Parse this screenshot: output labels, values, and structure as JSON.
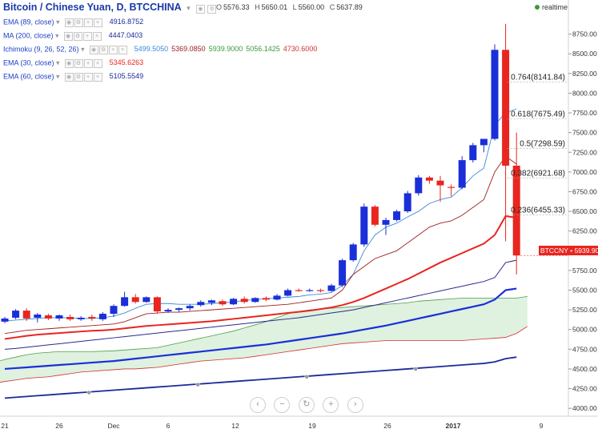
{
  "header": {
    "title": "Bitcoin / Chinese Yuan, D, BTCCHINA",
    "ohlc": {
      "o_label": "O",
      "o": "5576.33",
      "h_label": "H",
      "h": "5650.01",
      "l_label": "L",
      "l": "5560.00",
      "c_label": "C",
      "c": "5637.89"
    },
    "realtime": "realtime"
  },
  "indicators": [
    {
      "label": "EMA (89, close)",
      "values": [
        "4916.8752"
      ],
      "colors": [
        "#1a2a9a"
      ]
    },
    {
      "label": "MA (200, close)",
      "values": [
        "4447.0403"
      ],
      "colors": [
        "#1a2a9a"
      ]
    },
    {
      "label": "Ichimoku (9, 26, 52, 26)",
      "values": [
        "5499.5050",
        "5369.0850",
        "5939.9000",
        "5056.1425",
        "4730.6000"
      ],
      "colors": [
        "#3a8ad8",
        "#a02020",
        "#3a9a3a",
        "#3a9a3a",
        "#d03030"
      ]
    },
    {
      "label": "EMA (30, close)",
      "values": [
        "5345.6263"
      ],
      "colors": [
        "#e8251f"
      ]
    },
    {
      "label": "EMA (60, close)",
      "values": [
        "5105.5549"
      ],
      "colors": [
        "#1a2a9a"
      ]
    }
  ],
  "last_price": {
    "symbol": "BTCCNY",
    "value": "5939.90"
  },
  "nav_icons": [
    "chevron-left-icon",
    "minus-icon",
    "reset-icon",
    "plus-icon",
    "chevron-right-icon"
  ],
  "colors": {
    "up": "#1a2fd8",
    "down": "#e8251f",
    "ema30": "#e8251f",
    "ma200": "#1a2a9a",
    "ema60": "#1a2fd8",
    "ema89": "#2a2a8a",
    "tenkan": "#3a8ad8",
    "kijun": "#a02020",
    "cloud": "#d9efd9"
  },
  "chart_data": {
    "type": "candlestick",
    "title": "Bitcoin / Chinese Yuan, D, BTCCHINA",
    "ylim": [
      3900,
      9000
    ],
    "y_ticks": [
      4000,
      4250,
      4500,
      4750,
      5000,
      5250,
      5500,
      5750,
      6000,
      6250,
      6500,
      6750,
      7000,
      7250,
      7500,
      7750,
      8000,
      8250,
      8500,
      8750
    ],
    "x_ticks": [
      "21",
      "26",
      "Dec",
      "6",
      "12",
      "19",
      "26",
      "2017",
      "9"
    ],
    "fib_levels": [
      {
        "label": "0.764(8141.84)",
        "value": 8141.84
      },
      {
        "label": "0.618(7675.49)",
        "value": 7675.49
      },
      {
        "label": "0.5(7298.59)",
        "value": 7298.59
      },
      {
        "label": "0.382(6921.68)",
        "value": 6921.68
      },
      {
        "label": "0.236(6455.33)",
        "value": 6455.33
      }
    ],
    "candles": [
      {
        "o": 5100,
        "h": 5160,
        "l": 5080,
        "c": 5140
      },
      {
        "o": 5150,
        "h": 5260,
        "l": 5130,
        "c": 5240
      },
      {
        "o": 5240,
        "h": 5270,
        "l": 5110,
        "c": 5140
      },
      {
        "o": 5150,
        "h": 5210,
        "l": 5090,
        "c": 5190
      },
      {
        "o": 5180,
        "h": 5200,
        "l": 5120,
        "c": 5140
      },
      {
        "o": 5140,
        "h": 5190,
        "l": 5110,
        "c": 5180
      },
      {
        "o": 5160,
        "h": 5190,
        "l": 5110,
        "c": 5130
      },
      {
        "o": 5130,
        "h": 5170,
        "l": 5110,
        "c": 5150
      },
      {
        "o": 5160,
        "h": 5190,
        "l": 5110,
        "c": 5140
      },
      {
        "o": 5130,
        "h": 5220,
        "l": 5110,
        "c": 5200
      },
      {
        "o": 5200,
        "h": 5320,
        "l": 5160,
        "c": 5300
      },
      {
        "o": 5300,
        "h": 5480,
        "l": 5290,
        "c": 5410
      },
      {
        "o": 5410,
        "h": 5450,
        "l": 5330,
        "c": 5350
      },
      {
        "o": 5350,
        "h": 5420,
        "l": 5340,
        "c": 5410
      },
      {
        "o": 5410,
        "h": 5420,
        "l": 5200,
        "c": 5230
      },
      {
        "o": 5230,
        "h": 5270,
        "l": 5210,
        "c": 5250
      },
      {
        "o": 5250,
        "h": 5280,
        "l": 5220,
        "c": 5270
      },
      {
        "o": 5270,
        "h": 5320,
        "l": 5240,
        "c": 5300
      },
      {
        "o": 5310,
        "h": 5370,
        "l": 5290,
        "c": 5350
      },
      {
        "o": 5340,
        "h": 5380,
        "l": 5310,
        "c": 5370
      },
      {
        "o": 5360,
        "h": 5380,
        "l": 5300,
        "c": 5320
      },
      {
        "o": 5320,
        "h": 5400,
        "l": 5310,
        "c": 5390
      },
      {
        "o": 5390,
        "h": 5420,
        "l": 5330,
        "c": 5350
      },
      {
        "o": 5350,
        "h": 5410,
        "l": 5340,
        "c": 5400
      },
      {
        "o": 5400,
        "h": 5420,
        "l": 5360,
        "c": 5380
      },
      {
        "o": 5380,
        "h": 5450,
        "l": 5370,
        "c": 5430
      },
      {
        "o": 5430,
        "h": 5520,
        "l": 5420,
        "c": 5500
      },
      {
        "o": 5500,
        "h": 5520,
        "l": 5480,
        "c": 5490
      },
      {
        "o": 5490,
        "h": 5520,
        "l": 5480,
        "c": 5500
      },
      {
        "o": 5500,
        "h": 5520,
        "l": 5470,
        "c": 5490
      },
      {
        "o": 5490,
        "h": 5580,
        "l": 5480,
        "c": 5560
      },
      {
        "o": 5560,
        "h": 5900,
        "l": 5540,
        "c": 5880
      },
      {
        "o": 5880,
        "h": 6100,
        "l": 5860,
        "c": 6080
      },
      {
        "o": 6080,
        "h": 6600,
        "l": 6050,
        "c": 6560
      },
      {
        "o": 6560,
        "h": 6580,
        "l": 6310,
        "c": 6330
      },
      {
        "o": 6330,
        "h": 6420,
        "l": 6200,
        "c": 6390
      },
      {
        "o": 6390,
        "h": 6520,
        "l": 6370,
        "c": 6500
      },
      {
        "o": 6500,
        "h": 6760,
        "l": 6480,
        "c": 6730
      },
      {
        "o": 6730,
        "h": 6960,
        "l": 6700,
        "c": 6930
      },
      {
        "o": 6930,
        "h": 6950,
        "l": 6850,
        "c": 6890
      },
      {
        "o": 6890,
        "h": 6950,
        "l": 6620,
        "c": 6830
      },
      {
        "o": 6810,
        "h": 6840,
        "l": 6690,
        "c": 6800
      },
      {
        "o": 6800,
        "h": 7200,
        "l": 6780,
        "c": 7150
      },
      {
        "o": 7150,
        "h": 7370,
        "l": 7120,
        "c": 7340
      },
      {
        "o": 7340,
        "h": 7420,
        "l": 7250,
        "c": 7420
      },
      {
        "o": 7420,
        "h": 8620,
        "l": 7400,
        "c": 8550
      },
      {
        "o": 8550,
        "h": 8880,
        "l": 6120,
        "c": 7080
      },
      {
        "o": 7080,
        "h": 7500,
        "l": 5700,
        "c": 5939.9
      }
    ],
    "series": [
      {
        "name": "EMA (30, close)",
        "color": "#e8251f",
        "values": [
          4880,
          4900,
          4920,
          4935,
          4945,
          4955,
          4965,
          4975,
          4985,
          4990,
          5000,
          5015,
          5030,
          5045,
          5055,
          5065,
          5075,
          5085,
          5095,
          5105,
          5120,
          5135,
          5150,
          5165,
          5180,
          5195,
          5210,
          5225,
          5240,
          5260,
          5280,
          5310,
          5350,
          5400,
          5460,
          5520,
          5580,
          5640,
          5710,
          5780,
          5850,
          5910,
          5970,
          6030,
          6090,
          6200,
          6440,
          6420
        ]
      },
      {
        "name": "EMA (60, close)",
        "color": "#1a2fd8",
        "values": [
          4500,
          4510,
          4520,
          4530,
          4540,
          4550,
          4560,
          4570,
          4580,
          4590,
          4600,
          4615,
          4630,
          4645,
          4660,
          4675,
          4690,
          4705,
          4720,
          4735,
          4750,
          4765,
          4780,
          4795,
          4810,
          4830,
          4850,
          4870,
          4890,
          4910,
          4930,
          4950,
          4975,
          5000,
          5025,
          5050,
          5080,
          5110,
          5140,
          5170,
          5200,
          5230,
          5260,
          5290,
          5320,
          5380,
          5500,
          5520
        ]
      },
      {
        "name": "EMA (89, close)",
        "color": "#2a2a8a",
        "values": [
          4750,
          4760,
          4775,
          4790,
          4805,
          4820,
          4835,
          4850,
          4865,
          4880,
          4895,
          4910,
          4925,
          4940,
          4955,
          4970,
          4985,
          5000,
          5015,
          5030,
          5045,
          5060,
          5075,
          5090,
          5105,
          5120,
          5135,
          5150,
          5170,
          5190,
          5210,
          5230,
          5250,
          5280,
          5310,
          5340,
          5370,
          5400,
          5430,
          5460,
          5490,
          5520,
          5550,
          5580,
          5610,
          5660,
          5850,
          5880
        ]
      },
      {
        "name": "MA (200, close)",
        "color": "#1a2a9a",
        "values": [
          4130,
          4140,
          4150,
          4160,
          4170,
          4180,
          4190,
          4200,
          4210,
          4220,
          4230,
          4240,
          4250,
          4260,
          4270,
          4280,
          4290,
          4300,
          4310,
          4320,
          4330,
          4340,
          4350,
          4360,
          4370,
          4380,
          4390,
          4400,
          4410,
          4420,
          4430,
          4440,
          4450,
          4460,
          4470,
          4480,
          4490,
          4500,
          4510,
          4520,
          4530,
          4540,
          4550,
          4560,
          4570,
          4590,
          4630,
          4650
        ]
      },
      {
        "name": "Ichimoku (9, 26, 52, 26)",
        "color": "#3a8ad8",
        "values": [
          5110,
          5120,
          5130,
          5140,
          5150,
          5150,
          5150,
          5140,
          5140,
          5150,
          5170,
          5210,
          5270,
          5320,
          5330,
          5330,
          5320,
          5320,
          5320,
          5330,
          5340,
          5350,
          5370,
          5380,
          5390,
          5400,
          5410,
          5420,
          5440,
          5450,
          5470,
          5560,
          5700,
          6000,
          6200,
          6300,
          6350,
          6430,
          6500,
          6600,
          6650,
          6680,
          6800,
          6950,
          7050,
          7600,
          7750,
          7800
        ]
      },
      {
        "name": "Ichimoku (9, 26, 52, 26)",
        "color": "#a02020",
        "values": [
          4950,
          4970,
          4990,
          5000,
          5010,
          5020,
          5030,
          5040,
          5050,
          5060,
          5070,
          5100,
          5150,
          5200,
          5210,
          5220,
          5220,
          5230,
          5240,
          5250,
          5260,
          5270,
          5280,
          5290,
          5300,
          5310,
          5320,
          5340,
          5360,
          5380,
          5400,
          5500,
          5700,
          5800,
          5900,
          5950,
          6000,
          6100,
          6200,
          6300,
          6350,
          6380,
          6450,
          6550,
          6650,
          7000,
          7200,
          7100
        ]
      }
    ],
    "cloud": {
      "x_start": -5,
      "span_a": [
        4270,
        4300,
        4400,
        4500,
        4580,
        4620,
        4650,
        4680,
        4700,
        4710,
        4720,
        4720,
        4720,
        4720,
        4725,
        4730,
        4740,
        4750,
        4760,
        4770,
        4800,
        4830,
        4860,
        4890,
        4920,
        4950,
        4980,
        5020,
        5060,
        5100,
        5150,
        5200,
        5230,
        5250,
        5260,
        5270,
        5280,
        5290,
        5300,
        5310,
        5320,
        5330,
        5340,
        5360,
        5370,
        5380,
        5390,
        5400,
        5400,
        5400,
        5400,
        5400,
        5400,
        5420
      ],
      "span_b": [
        4260,
        4280,
        4290,
        4300,
        4320,
        4340,
        4360,
        4380,
        4390,
        4400,
        4420,
        4440,
        4460,
        4470,
        4480,
        4490,
        4500,
        4500,
        4510,
        4520,
        4540,
        4560,
        4580,
        4600,
        4610,
        4620,
        4630,
        4640,
        4660,
        4680,
        4700,
        4720,
        4740,
        4760,
        4780,
        4800,
        4820,
        4830,
        4840,
        4850,
        4860,
        4860,
        4860,
        4860,
        4860,
        4860,
        4860,
        4860,
        4870,
        4880,
        4890,
        4900,
        4950,
        5040
      ]
    },
    "ma200_markers": [
      7,
      17,
      27,
      37
    ]
  }
}
